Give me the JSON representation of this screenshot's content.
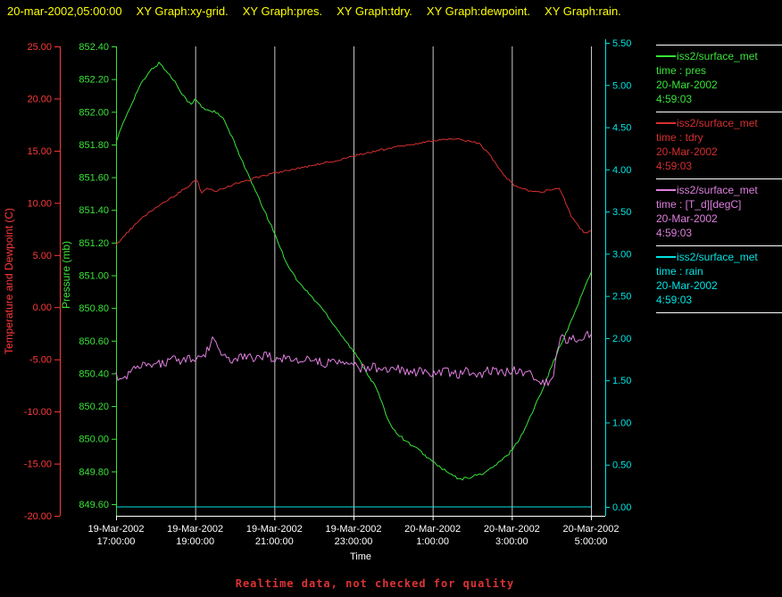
{
  "header": {
    "title_segments": [
      "20-mar-2002,05:00:00",
      "XY Graph:xy-grid.",
      "XY Graph:pres.",
      "XY Graph:tdry.",
      "XY Graph:dewpoint.",
      "XY Graph:rain."
    ]
  },
  "colors": {
    "background": "#000000",
    "title": "#ffff00",
    "white": "#ffffff",
    "grid": "#c8c8c8",
    "separator": "#ffffff",
    "temp_axis": "#ff3a3a",
    "pres": "#38e438",
    "tdry": "#d62f2f",
    "dewpoint": "#df7fdf",
    "rain": "#00e4e4",
    "footer": "#dd3333"
  },
  "legend": {
    "entries": [
      {
        "source": "iss2/surface_met",
        "field": "time : pres",
        "date": "20-Mar-2002",
        "time": "4:59:03",
        "color": "pres"
      },
      {
        "source": "iss2/surface_met",
        "field": "time : tdry",
        "date": "20-Mar-2002",
        "time": "4:59:03",
        "color": "tdry"
      },
      {
        "source": "iss2/surface_met",
        "field": "time : [T_d][degC]",
        "date": "20-Mar-2002",
        "time": "4:59:03",
        "color": "dewpoint"
      },
      {
        "source": "iss2/surface_met",
        "field": "time : rain",
        "date": "20-Mar-2002",
        "time": "4:59:03",
        "color": "rain"
      }
    ]
  },
  "footer": {
    "note": "Realtime data, not checked for quality"
  },
  "chart_data": {
    "type": "line",
    "grid": true,
    "legend_position": "right",
    "x_axis": {
      "title": "Time",
      "range_hours": [
        0,
        12
      ],
      "ticks": [
        {
          "date": "19-Mar-2002",
          "time": "17:00:00"
        },
        {
          "date": "19-Mar-2002",
          "time": "19:00:00"
        },
        {
          "date": "19-Mar-2002",
          "time": "21:00:00"
        },
        {
          "date": "19-Mar-2002",
          "time": "23:00:00"
        },
        {
          "date": "20-Mar-2002",
          "time": "1:00:00"
        },
        {
          "date": "20-Mar-2002",
          "time": "3:00:00"
        },
        {
          "date": "20-Mar-2002",
          "time": "5:00:00"
        }
      ]
    },
    "y_axes": {
      "temperature": {
        "title": "Temperature and Dewpoint (C)",
        "range": [
          -20,
          25
        ],
        "ticks": [
          "25.00",
          "20.00",
          "15.00",
          "10.00",
          "5.00",
          "0.00",
          "-5.00",
          "-10.00",
          "-15.00",
          "-20.00"
        ]
      },
      "pressure": {
        "title": "Pressure (mb)",
        "range": [
          849.6,
          852.4
        ],
        "ticks": [
          "852.40",
          "852.20",
          "852.00",
          "851.80",
          "851.60",
          "851.40",
          "851.20",
          "851.00",
          "850.80",
          "850.60",
          "850.40",
          "850.20",
          "850.00",
          "849.80",
          "849.60"
        ]
      },
      "rain": {
        "title": "",
        "range": [
          0.0,
          5.5
        ],
        "ticks": [
          "5.50",
          "5.00",
          "4.50",
          "4.00",
          "3.50",
          "3.00",
          "2.50",
          "2.00",
          "1.50",
          "1.00",
          "0.50",
          "0.00"
        ]
      }
    },
    "grid_hours": [
      2,
      4,
      6,
      8,
      10,
      12
    ],
    "series": [
      {
        "name": "pres",
        "axis": "pressure",
        "color": "pres",
        "jitter": 0.008,
        "keypoints": [
          [
            0,
            851.82
          ],
          [
            0.3,
            852.0
          ],
          [
            0.6,
            852.16
          ],
          [
            0.9,
            852.26
          ],
          [
            1.1,
            852.3
          ],
          [
            1.3,
            852.24
          ],
          [
            1.5,
            852.18
          ],
          [
            1.7,
            852.1
          ],
          [
            1.9,
            852.04
          ],
          [
            2.0,
            852.08
          ],
          [
            2.2,
            852.02
          ],
          [
            2.5,
            852.0
          ],
          [
            2.7,
            851.96
          ],
          [
            2.9,
            851.86
          ],
          [
            3.1,
            851.75
          ],
          [
            3.4,
            851.58
          ],
          [
            3.7,
            851.42
          ],
          [
            4.0,
            851.26
          ],
          [
            4.3,
            851.08
          ],
          [
            4.6,
            850.96
          ],
          [
            4.9,
            850.88
          ],
          [
            5.2,
            850.8
          ],
          [
            5.5,
            850.7
          ],
          [
            5.8,
            850.6
          ],
          [
            6.1,
            850.5
          ],
          [
            6.4,
            850.38
          ],
          [
            6.6,
            850.3
          ],
          [
            6.8,
            850.16
          ],
          [
            7.0,
            850.06
          ],
          [
            7.3,
            849.99
          ],
          [
            7.6,
            849.94
          ],
          [
            8.0,
            849.86
          ],
          [
            8.4,
            849.79
          ],
          [
            8.7,
            849.75
          ],
          [
            9.0,
            849.77
          ],
          [
            9.3,
            849.79
          ],
          [
            9.6,
            849.84
          ],
          [
            9.9,
            849.9
          ],
          [
            10.2,
            850.0
          ],
          [
            10.5,
            850.15
          ],
          [
            10.8,
            850.32
          ],
          [
            11.1,
            850.5
          ],
          [
            11.4,
            850.66
          ],
          [
            11.7,
            850.84
          ],
          [
            12,
            851.02
          ]
        ]
      },
      {
        "name": "tdry",
        "axis": "temperature",
        "color": "tdry",
        "jitter": 0.1,
        "keypoints": [
          [
            0,
            6.0
          ],
          [
            0.4,
            7.6
          ],
          [
            0.8,
            9.0
          ],
          [
            1.2,
            10.0
          ],
          [
            1.6,
            11.0
          ],
          [
            1.9,
            11.8
          ],
          [
            2.05,
            12.3
          ],
          [
            2.15,
            10.9
          ],
          [
            2.3,
            11.4
          ],
          [
            2.5,
            11.1
          ],
          [
            2.7,
            11.3
          ],
          [
            3.0,
            11.8
          ],
          [
            3.3,
            12.1
          ],
          [
            3.7,
            12.6
          ],
          [
            4.1,
            12.9
          ],
          [
            4.6,
            13.3
          ],
          [
            5.1,
            13.7
          ],
          [
            5.6,
            14.1
          ],
          [
            6.1,
            14.6
          ],
          [
            6.6,
            15.0
          ],
          [
            7.1,
            15.4
          ],
          [
            7.6,
            15.7
          ],
          [
            8.1,
            16.0
          ],
          [
            8.6,
            16.1
          ],
          [
            9.0,
            15.9
          ],
          [
            9.2,
            15.6
          ],
          [
            9.45,
            14.6
          ],
          [
            9.65,
            13.4
          ],
          [
            9.85,
            12.4
          ],
          [
            10.1,
            11.6
          ],
          [
            10.4,
            11.2
          ],
          [
            10.7,
            11.0
          ],
          [
            11.0,
            11.3
          ],
          [
            11.2,
            11.5
          ],
          [
            11.35,
            10.1
          ],
          [
            11.5,
            8.7
          ],
          [
            11.7,
            7.7
          ],
          [
            11.85,
            7.1
          ],
          [
            12,
            7.4
          ]
        ]
      },
      {
        "name": "dewpoint",
        "axis": "temperature",
        "color": "dewpoint",
        "jitter": 0.45,
        "keypoints": [
          [
            0,
            -6.6
          ],
          [
            0.2,
            -6.8
          ],
          [
            0.4,
            -6.1
          ],
          [
            0.6,
            -5.5
          ],
          [
            0.8,
            -5.8
          ],
          [
            1.0,
            -5.2
          ],
          [
            1.2,
            -5.5
          ],
          [
            1.4,
            -5.0
          ],
          [
            1.6,
            -5.3
          ],
          [
            1.8,
            -4.8
          ],
          [
            2.0,
            -5.1
          ],
          [
            2.2,
            -4.7
          ],
          [
            2.35,
            -4.0
          ],
          [
            2.45,
            -2.5
          ],
          [
            2.55,
            -3.8
          ],
          [
            2.7,
            -4.7
          ],
          [
            2.9,
            -5.0
          ],
          [
            3.2,
            -4.6
          ],
          [
            3.5,
            -4.9
          ],
          [
            3.8,
            -4.6
          ],
          [
            4.1,
            -5.1
          ],
          [
            4.4,
            -4.8
          ],
          [
            4.7,
            -5.2
          ],
          [
            5.0,
            -4.9
          ],
          [
            5.3,
            -5.4
          ],
          [
            5.6,
            -5.1
          ],
          [
            5.9,
            -5.5
          ],
          [
            6.2,
            -5.9
          ],
          [
            6.5,
            -5.7
          ],
          [
            6.8,
            -6.2
          ],
          [
            7.1,
            -5.9
          ],
          [
            7.4,
            -6.4
          ],
          [
            7.7,
            -6.1
          ],
          [
            8.0,
            -6.6
          ],
          [
            8.3,
            -6.2
          ],
          [
            8.6,
            -6.5
          ],
          [
            8.9,
            -6.1
          ],
          [
            9.2,
            -6.4
          ],
          [
            9.5,
            -6.0
          ],
          [
            9.8,
            -6.3
          ],
          [
            10.1,
            -6.0
          ],
          [
            10.4,
            -6.4
          ],
          [
            10.7,
            -6.9
          ],
          [
            10.9,
            -7.3
          ],
          [
            11.05,
            -6.5
          ],
          [
            11.15,
            -4.5
          ],
          [
            11.25,
            -2.8
          ],
          [
            11.4,
            -3.2
          ],
          [
            11.55,
            -2.7
          ],
          [
            11.7,
            -3.1
          ],
          [
            11.85,
            -2.8
          ],
          [
            12,
            -2.6
          ]
        ]
      },
      {
        "name": "rain",
        "axis": "rain",
        "color": "rain",
        "jitter": 0,
        "keypoints": [
          [
            0,
            0.0
          ],
          [
            12,
            0.0
          ]
        ]
      }
    ]
  }
}
